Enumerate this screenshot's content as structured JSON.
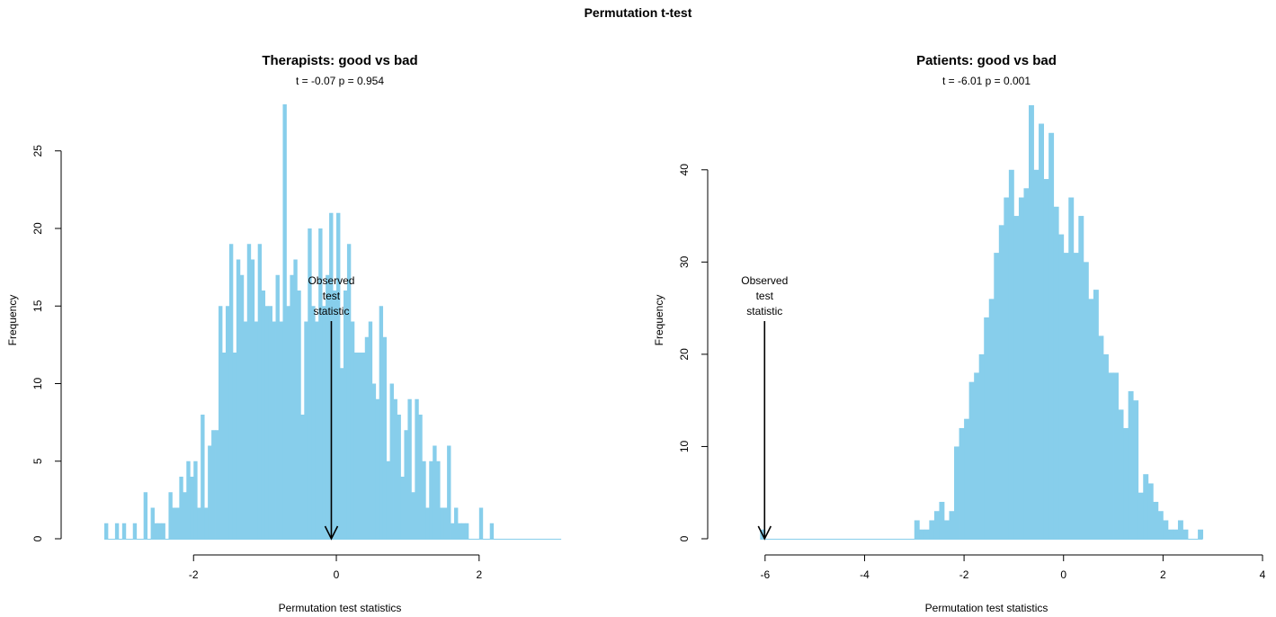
{
  "page": {
    "title": "Permutation t-test"
  },
  "colors": {
    "bar": "#87CEEB",
    "axis": "#000000",
    "arrow": "#000000"
  },
  "chart_data": [
    {
      "type": "bar",
      "title": "Therapists: good vs bad",
      "subtitle": "t = -0.07 p = 0.954",
      "xlabel": "Permutation test statistics",
      "ylabel": "Frequency",
      "xlim": [
        -3.25,
        3.35
      ],
      "ylim": [
        0,
        28
      ],
      "xticks": [
        -2,
        0,
        2
      ],
      "yticks": [
        0,
        5,
        10,
        15,
        20,
        25
      ],
      "bin_width": 0.05,
      "bin_start": -3.25,
      "values": [
        1,
        0,
        0,
        1,
        0,
        1,
        0,
        0,
        1,
        0,
        0,
        3,
        0,
        2,
        1,
        1,
        1,
        0,
        3,
        2,
        2,
        4,
        3,
        5,
        4,
        5,
        2,
        8,
        2,
        6,
        7,
        7,
        15,
        12,
        15,
        19,
        12,
        18,
        17,
        14,
        19,
        18,
        14,
        19,
        16,
        15,
        15,
        14,
        17,
        14,
        28,
        15,
        17,
        18,
        16,
        8,
        14,
        20,
        15,
        14,
        20,
        15,
        17,
        21,
        16,
        21,
        11,
        16,
        19,
        14,
        12,
        12,
        12,
        13,
        14,
        10,
        9,
        15,
        13,
        5,
        10,
        9,
        8,
        4,
        7,
        9,
        3,
        9,
        8,
        5,
        2,
        5,
        6,
        5,
        2,
        2,
        6,
        1,
        2,
        1,
        1,
        1,
        0,
        0,
        0,
        2,
        0,
        0,
        1,
        0,
        0,
        0,
        0,
        0,
        0,
        0,
        0,
        0,
        0,
        0,
        0,
        0,
        0,
        0,
        0,
        0,
        0,
        0
      ],
      "observed": {
        "value": -0.07,
        "label_lines": [
          "Observed",
          "test",
          "statistic"
        ]
      }
    },
    {
      "type": "bar",
      "title": "Patients: good vs bad",
      "subtitle": "t = -6.01 p = 0.001",
      "xlabel": "Permutation test statistics",
      "ylabel": "Frequency",
      "xlim": [
        -6.25,
        4.0
      ],
      "ylim": [
        0,
        47
      ],
      "xticks": [
        -6,
        -4,
        -2,
        0,
        2,
        4
      ],
      "yticks": [
        0,
        10,
        20,
        30,
        40
      ],
      "bin_width": 0.1,
      "bin_start": -6.1,
      "values": [
        1,
        0,
        0,
        0,
        0,
        0,
        0,
        0,
        0,
        0,
        0,
        0,
        0,
        0,
        0,
        0,
        0,
        0,
        0,
        0,
        0,
        0,
        0,
        0,
        0,
        0,
        0,
        0,
        0,
        0,
        0,
        2,
        1,
        1,
        2,
        3,
        4,
        2,
        3,
        10,
        12,
        13,
        17,
        18,
        20,
        24,
        26,
        31,
        34,
        37,
        40,
        35,
        37,
        38,
        47,
        40,
        45,
        39,
        44,
        36,
        33,
        31,
        37,
        31,
        35,
        30,
        26,
        27,
        22,
        20,
        18,
        18,
        14,
        12,
        16,
        15,
        5,
        7,
        6,
        4,
        3,
        2,
        1,
        1,
        2,
        1,
        0,
        0,
        1
      ],
      "observed": {
        "value": -6.01,
        "label_lines": [
          "Observed",
          "test",
          "statistic"
        ]
      }
    }
  ]
}
